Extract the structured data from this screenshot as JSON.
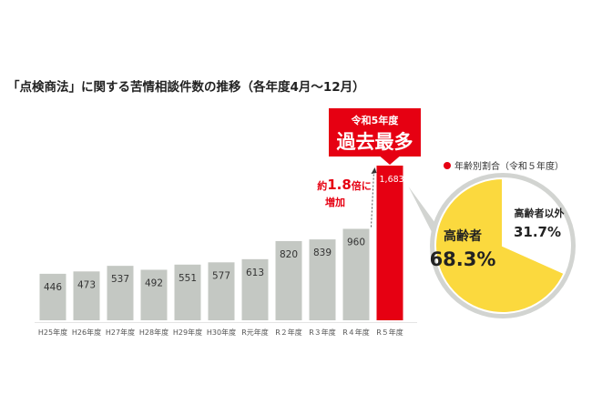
{
  "title": "「点検商法」に関する苦情相談件数の推移（各年度4月～12月）",
  "chart_data": [
    {
      "type": "bar",
      "title": "「点検商法」に関する苦情相談件数の推移（各年度4月～12月）",
      "categories": [
        "H25年度",
        "H26年度",
        "H27年度",
        "H28年度",
        "H29年度",
        "H30年度",
        "R元年度",
        "R２年度",
        "R３年度",
        "R４年度",
        "R５年度"
      ],
      "values": [
        446,
        473,
        537,
        492,
        551,
        577,
        613,
        820,
        839,
        960,
        1683
      ],
      "value_labels": [
        "446",
        "473",
        "537",
        "492",
        "551",
        "577",
        "613",
        "820",
        "839",
        "960",
        "1,683"
      ],
      "highlight_index": 10,
      "colors": {
        "bar": "#c4c8c3",
        "highlight": "#e60012",
        "accent": "#e60012"
      },
      "callout": {
        "line1": "令和5年度",
        "line2": "過去最多"
      },
      "increase_note": {
        "prefix": "約",
        "value": "1.8",
        "suffix": "倍に",
        "line2": "増加"
      },
      "grid": false
    },
    {
      "type": "pie",
      "title": "年齢別割合（令和５年度）",
      "slices": [
        {
          "label": "高齢者",
          "value": 68.3,
          "display": "68.3%",
          "color": "#fbd93e"
        },
        {
          "label": "高齢者以外",
          "value": 31.7,
          "display": "31.7%",
          "color": "#ffffff"
        }
      ],
      "colors": {
        "ring": "#d2d4d1",
        "legend_dot": "#e60012"
      }
    }
  ]
}
